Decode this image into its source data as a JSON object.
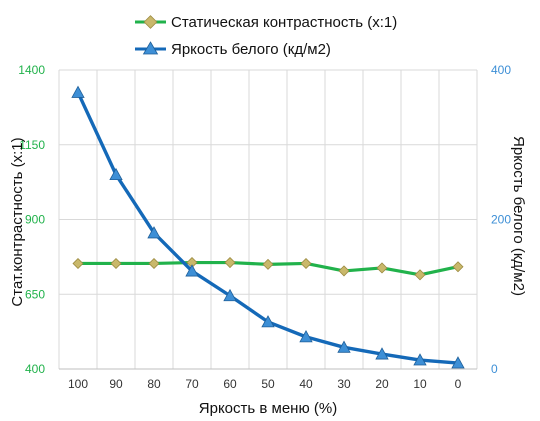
{
  "chart_data": {
    "type": "line",
    "categories": [
      "100",
      "90",
      "80",
      "70",
      "60",
      "50",
      "40",
      "30",
      "20",
      "10",
      "0"
    ],
    "series": [
      {
        "name": "Статическая контрастность  (x:1)",
        "axis": "left",
        "color": "#21b24b",
        "marker": "diamond",
        "marker_color": "#c9b86b",
        "values": [
          753,
          753,
          753,
          756,
          756,
          750,
          753,
          728,
          738,
          715,
          742
        ]
      },
      {
        "name": "Яркость белого (кд/м2)",
        "axis": "right",
        "color": "#1469b8",
        "marker": "triangle",
        "marker_color": "#3d8fd6",
        "values": [
          370,
          260,
          182,
          131,
          98,
          63,
          43,
          29,
          20,
          12,
          8
        ]
      }
    ],
    "xlabel": "Яркость в меню (%)",
    "ylabel_left": "Стат.контрастность  (x:1)",
    "ylabel_right": "Яркость белого (кд/м2)",
    "ylim_left": [
      400,
      1400
    ],
    "yticks_left": [
      "400",
      "650",
      "900",
      "1150",
      "1400"
    ],
    "ylim_right": [
      0,
      400
    ],
    "yticks_right": [
      "0",
      "200",
      "400"
    ],
    "left_tick_color": "#21b24b",
    "right_tick_color": "#3d8fd6",
    "grid": true,
    "legend_position": "top"
  }
}
